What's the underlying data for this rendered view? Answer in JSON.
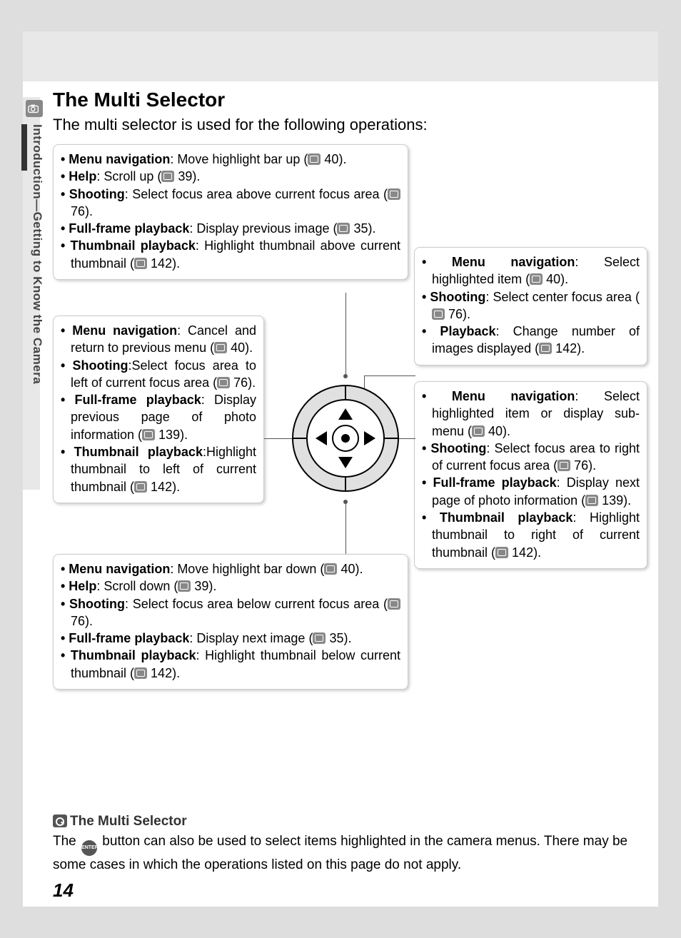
{
  "side_label": "Introduction—Getting to Know the Camera",
  "title": "The Multi Selector",
  "intro": "The multi selector is used for the following operations:",
  "page_number": "14",
  "colors": {
    "page_bg": "#ffffff",
    "outer_bg": "#dedede",
    "band_bg": "#e8e8e8",
    "box_border": "#cccccc",
    "icon_bg": "#888888",
    "text": "#000000"
  },
  "boxes": {
    "up": [
      {
        "label": "Menu navigation",
        "text": ": Move highlight bar up (",
        "ref": "40",
        "tail": ")."
      },
      {
        "label": "Help",
        "text": ": Scroll up (",
        "ref": "39",
        "tail": ")."
      },
      {
        "label": "Shooting",
        "text": ": Select focus area above current focus area (",
        "ref": "76",
        "tail": ")."
      },
      {
        "label": "Full-frame playback",
        "text": ": Display previous image (",
        "ref": "35",
        "tail": ")."
      },
      {
        "label": "Thumbnail playback",
        "text": ": Highlight thumbnail above current thumbnail (",
        "ref": "142",
        "tail": ")."
      }
    ],
    "left": [
      {
        "label": "Menu navigation",
        "text": ": Cancel and return to previous menu (",
        "ref": "40",
        "tail": ")."
      },
      {
        "label": "Shooting",
        "text": ":Select focus area to left of current focus area (",
        "ref": "76",
        "tail": ")."
      },
      {
        "label": "Full-frame playback",
        "text": ": Display previous page of photo information (",
        "ref": "139",
        "tail": ")."
      },
      {
        "label": "Thumbnail playback",
        "text": ":Highlight thumbnail to left of current thumbnail (",
        "ref": "142",
        "tail": ")."
      }
    ],
    "down": [
      {
        "label": "Menu navigation",
        "text": ": Move highlight bar down (",
        "ref": "40",
        "tail": ")."
      },
      {
        "label": "Help",
        "text": ": Scroll down (",
        "ref": "39",
        "tail": ")."
      },
      {
        "label": "Shooting",
        "text": ": Select focus area below current focus area (",
        "ref": "76",
        "tail": ")."
      },
      {
        "label": "Full-frame playback",
        "text": ": Display next image (",
        "ref": "35",
        "tail": ")."
      },
      {
        "label": "Thumbnail playback",
        "text": ": Highlight thumbnail below current thumbnail (",
        "ref": "142",
        "tail": ")."
      }
    ],
    "center": [
      {
        "label": "Menu navigation",
        "text": ": Select highlighted item (",
        "ref": "40",
        "tail": ")."
      },
      {
        "label": "Shooting",
        "text": ": Select center focus area (",
        "ref": "76",
        "tail": ")."
      },
      {
        "label": "Playback",
        "text": ": Change number of images displayed (",
        "ref": "142",
        "tail": ")."
      }
    ],
    "right": [
      {
        "label": "Menu navigation",
        "text": ": Select highlighted item or display sub-menu (",
        "ref": "40",
        "tail": ")."
      },
      {
        "label": "Shooting",
        "text": ": Select focus area to right of current focus area (",
        "ref": "76",
        "tail": ")."
      },
      {
        "label": "Full-frame playback",
        "text": ": Display next page of photo information (",
        "ref": "139",
        "tail": ")."
      },
      {
        "label": "Thumbnail playback",
        "text": ": Highlight thumbnail to right of current thumbnail (",
        "ref": "142",
        "tail": ")."
      }
    ]
  },
  "footer": {
    "title": "The Multi Selector",
    "text_pre": "The ",
    "enter_label": "ENTER",
    "text_post": " button can also be used to select items highlighted in the camera menus.  There may be some cases in which the operations listed on this page do not apply."
  },
  "selector_diagram": {
    "outer_radius": 74,
    "mid_radius": 54,
    "inner_radius": 18,
    "stroke": "#000000",
    "fill_outer": "#dddddd",
    "fill_mid": "#ffffff",
    "arrow_fill": "#000000"
  }
}
